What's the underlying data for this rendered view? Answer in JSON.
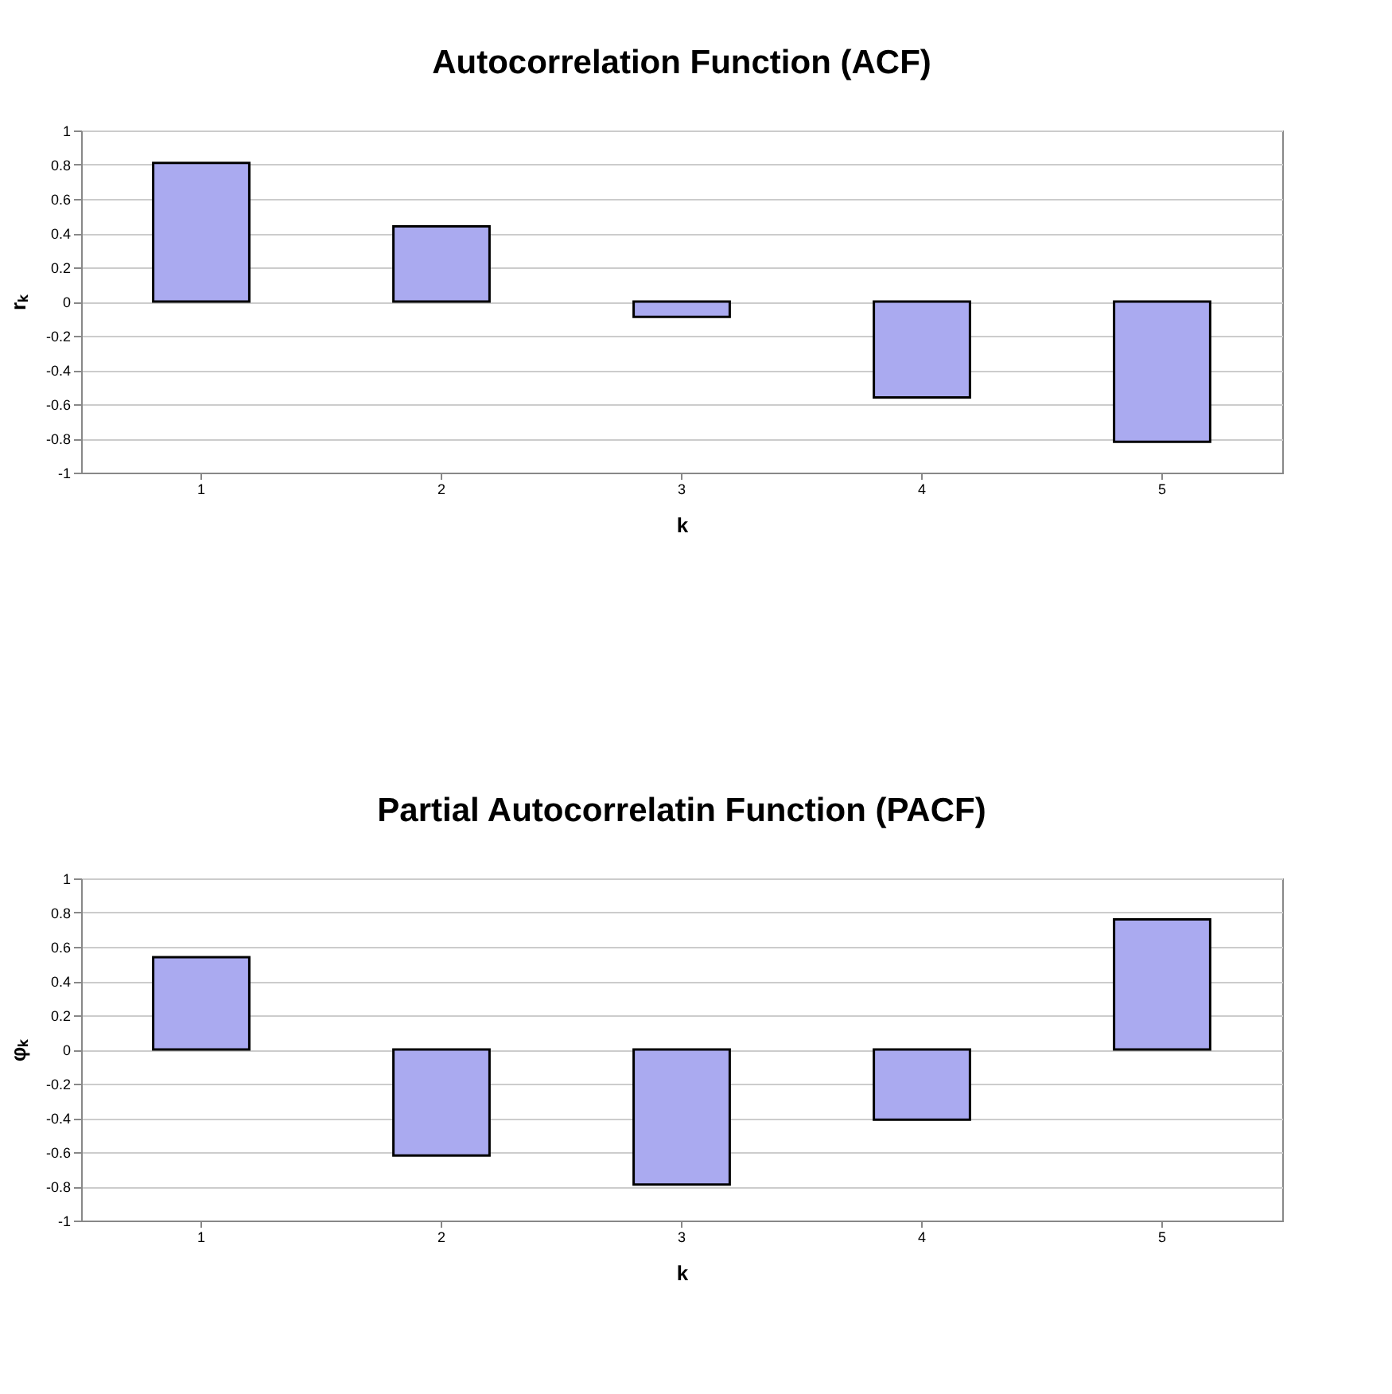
{
  "chart_data": [
    {
      "type": "bar",
      "title": "Autocorrelation Function (ACF)",
      "xlabel": "k",
      "ylabel": "rₖ",
      "categories": [
        "1",
        "2",
        "3",
        "4",
        "5"
      ],
      "values": [
        0.81,
        0.44,
        -0.09,
        -0.56,
        -0.82
      ],
      "color": "#aaaaf0",
      "ylim": [
        -1,
        1
      ],
      "yticks": [
        -1,
        -0.8,
        -0.6,
        -0.4,
        -0.2,
        0,
        0.2,
        0.4,
        0.6,
        0.8,
        1
      ],
      "grid": "y"
    },
    {
      "type": "bar",
      "title": "Partial Autocorrelatin Function (PACF)",
      "xlabel": "k",
      "ylabel": "φₖ",
      "categories": [
        "1",
        "2",
        "3",
        "4",
        "5"
      ],
      "values": [
        0.54,
        -0.62,
        -0.79,
        -0.41,
        0.76
      ],
      "color": "#aaaaf0",
      "ylim": [
        -1,
        1
      ],
      "yticks": [
        -1,
        -0.8,
        -0.6,
        -0.4,
        -0.2,
        0,
        0.2,
        0.4,
        0.6,
        0.8,
        1
      ],
      "grid": "y"
    }
  ]
}
